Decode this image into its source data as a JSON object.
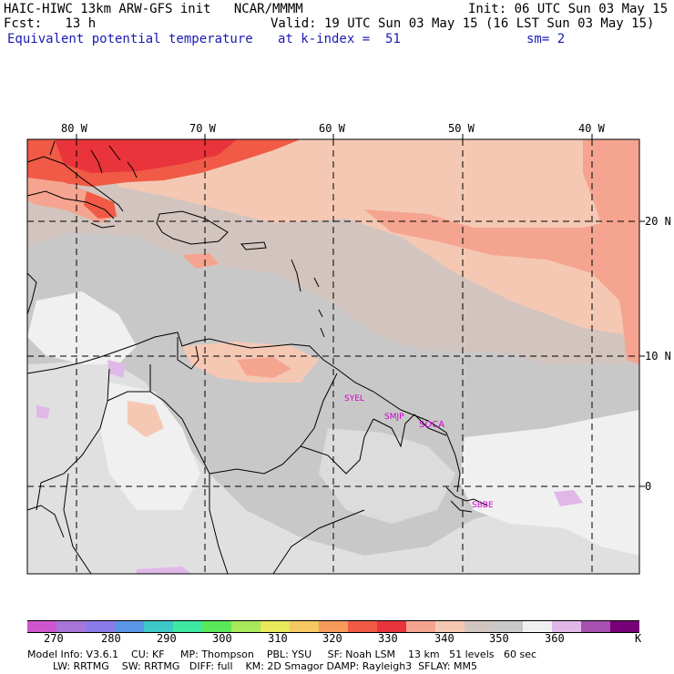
{
  "header": {
    "line1_left": "HAIC-HIWC 13km ARW-GFS init   NCAR/MMMM",
    "line1_right": "Init: 06 UTC Sun 03 May 15",
    "line2_left": "Fcst:   13 h",
    "line2_right": "Valid: 19 UTC Sun 03 May 15 (16 LST Sun 03 May 15)",
    "line3_left": "Equivalent potential temperature",
    "line3_mid": "at k-index =  51",
    "line3_right": "sm= 2"
  },
  "map": {
    "lon_labels": [
      "80 W",
      "70 W",
      "60 W",
      "50 W",
      "40 W"
    ],
    "lat_labels": [
      "20 N",
      "10 N",
      "0"
    ],
    "stations": [
      "SYEL",
      "SMJP",
      "SOCA",
      "SBBE"
    ]
  },
  "colorbar": {
    "labels": [
      "270",
      "280",
      "290",
      "300",
      "310",
      "320",
      "330",
      "340",
      "350",
      "360",
      "K"
    ],
    "colors": [
      "#cf55cf",
      "#a875d8",
      "#8a7be8",
      "#5a96e6",
      "#3ec8c8",
      "#3ee8a0",
      "#5ae85a",
      "#a8e85a",
      "#e8e85a",
      "#f5c864",
      "#f59a5a",
      "#f05a46",
      "#e8343a",
      "#f5a490",
      "#f5c8b4",
      "#d2c4be",
      "#c8c8c8",
      "#f0f0f0",
      "#e0b8e8",
      "#a850b0",
      "#780078"
    ]
  },
  "model_info": {
    "line1": "Model Info: V3.6.1    CU: KF     MP: Thompson    PBL: YSU     SF: Noah LSM    13 km   51 levels   60 sec",
    "line2": "        LW: RRTMG    SW: RRTMG   DIFF: full    KM: 2D Smagor DAMP: Rayleigh3  SFLAY: MM5"
  }
}
